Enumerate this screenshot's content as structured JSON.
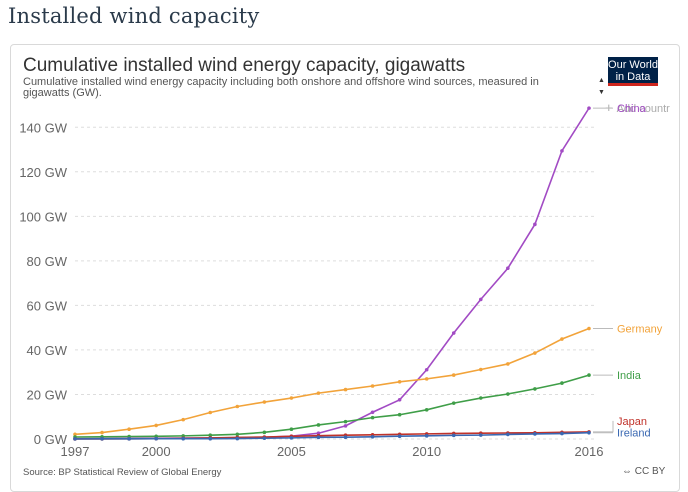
{
  "page": {
    "heading": "Installed wind capacity"
  },
  "card": {
    "title": "Cumulative installed wind energy capacity, gigawatts",
    "subtitle": "Cumulative installed wind energy capacity including both onshore and offshore wind sources, measured in gigawatts (GW).",
    "logo_line1": "Our World",
    "logo_line2": "in Data",
    "add_country": "Add countr",
    "source": "Source: BP Statistical Review of Global Energy",
    "license": "CC BY"
  },
  "chart_data": {
    "type": "line",
    "title": "Cumulative installed wind energy capacity, gigawatts",
    "xlabel": "",
    "ylabel": "",
    "xlim": [
      1997,
      2016
    ],
    "ylim": [
      0,
      150
    ],
    "y_ticks": [
      "0 GW",
      "20 GW",
      "40 GW",
      "60 GW",
      "80 GW",
      "100 GW",
      "120 GW",
      "140 GW"
    ],
    "y_tick_values": [
      0,
      20,
      40,
      60,
      80,
      100,
      120,
      140
    ],
    "x_ticks": [
      "1997",
      "2000",
      "2005",
      "2010",
      "2016"
    ],
    "x_tick_values": [
      1997,
      2000,
      2005,
      2010,
      2016
    ],
    "grid": "horizontal dashed",
    "legend": "right (end labels)",
    "x": [
      1997,
      1998,
      1999,
      2000,
      2001,
      2002,
      2003,
      2004,
      2005,
      2006,
      2007,
      2008,
      2009,
      2010,
      2011,
      2012,
      2013,
      2014,
      2015,
      2016
    ],
    "series": [
      {
        "name": "China",
        "color": "#a24bc4",
        "values": [
          0.17,
          0.22,
          0.27,
          0.34,
          0.4,
          0.47,
          0.57,
          0.76,
          1.27,
          2.6,
          5.9,
          12.0,
          17.6,
          31.1,
          47.6,
          62.7,
          76.7,
          96.4,
          129.4,
          148.6
        ]
      },
      {
        "name": "Germany",
        "color": "#f2a33a",
        "values": [
          2.1,
          2.9,
          4.4,
          6.1,
          8.7,
          11.9,
          14.6,
          16.6,
          18.4,
          20.6,
          22.2,
          23.8,
          25.7,
          27.0,
          28.7,
          31.2,
          33.7,
          38.6,
          44.9,
          49.6
        ]
      },
      {
        "name": "India",
        "color": "#3f9e48",
        "values": [
          0.9,
          1.0,
          1.1,
          1.2,
          1.4,
          1.7,
          2.1,
          3.0,
          4.4,
          6.3,
          7.8,
          9.6,
          10.9,
          13.1,
          16.1,
          18.4,
          20.2,
          22.5,
          25.1,
          28.7
        ]
      },
      {
        "name": "Japan",
        "color": "#c0322a",
        "values": [
          0.02,
          0.03,
          0.07,
          0.14,
          0.3,
          0.46,
          0.68,
          0.9,
          1.2,
          1.5,
          1.7,
          1.9,
          2.1,
          2.3,
          2.5,
          2.6,
          2.7,
          2.8,
          3.0,
          3.2
        ]
      },
      {
        "name": "Ireland",
        "color": "#3a68b2",
        "values": [
          0.05,
          0.07,
          0.07,
          0.12,
          0.13,
          0.14,
          0.19,
          0.34,
          0.5,
          0.75,
          0.8,
          1.0,
          1.26,
          1.43,
          1.63,
          1.74,
          2.05,
          2.27,
          2.44,
          2.83
        ]
      }
    ]
  }
}
